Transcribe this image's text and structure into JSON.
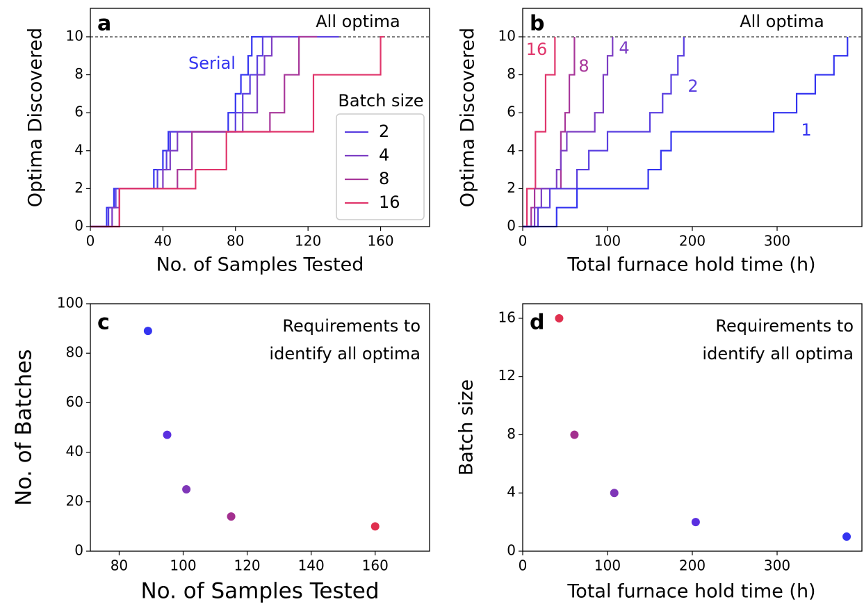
{
  "chart_data": [
    {
      "type": "step",
      "panel_label": "a",
      "x_label": "No. of Samples Tested",
      "y_label": "Optima Discovered",
      "xlim": [
        0,
        187
      ],
      "xticks": [
        0,
        40,
        80,
        120,
        160
      ],
      "ylim": [
        0,
        11.5
      ],
      "yticks": [
        0,
        2,
        4,
        6,
        8,
        10
      ],
      "threshold": {
        "value": 10,
        "label": "All optima"
      },
      "legend": {
        "title": "Batch size",
        "loc": "center right"
      },
      "series": [
        {
          "name": "Serial",
          "legend_entry": false,
          "color": "#3434f0",
          "x": [
            0,
            9,
            13,
            35,
            40,
            43,
            76,
            80,
            83,
            87,
            89,
            100
          ],
          "values": [
            0,
            1,
            2,
            3,
            4,
            5,
            6,
            7,
            8,
            9,
            10,
            10
          ]
        },
        {
          "name": "2",
          "color": "#5a3fe0",
          "x": [
            0,
            10,
            14,
            37,
            42,
            44,
            80,
            84,
            88,
            92,
            95,
            137
          ],
          "values": [
            0,
            1,
            2,
            3,
            4,
            5,
            6,
            7,
            8,
            9,
            10,
            10
          ]
        },
        {
          "name": "4",
          "color": "#7d3ec4",
          "x": [
            0,
            12,
            16,
            40,
            44,
            48,
            84,
            92,
            96,
            100,
            110
          ],
          "values": [
            0,
            1,
            2,
            3,
            4,
            5,
            6,
            8,
            9,
            10,
            10
          ]
        },
        {
          "name": "8",
          "color": "#a8379a",
          "x": [
            0,
            16,
            48,
            56,
            99,
            107,
            115,
            125
          ],
          "values": [
            0,
            2,
            3,
            5,
            6,
            8,
            10,
            10
          ]
        },
        {
          "name": "16",
          "color": "#e0356b",
          "x": [
            0,
            16,
            58,
            75,
            123,
            160,
            162
          ],
          "values": [
            0,
            2,
            3,
            5,
            8,
            10,
            10
          ]
        }
      ]
    },
    {
      "type": "step",
      "panel_label": "b",
      "x_label": "Total furnace hold time (h)",
      "y_label": "Optima Discovered",
      "xlim": [
        0,
        400
      ],
      "xticks": [
        0,
        100,
        200,
        300
      ],
      "ylim": [
        0,
        11.5
      ],
      "yticks": [
        0,
        2,
        4,
        6,
        8,
        10
      ],
      "threshold": {
        "value": 10,
        "label": "All optima"
      },
      "legend": "inline",
      "series": [
        {
          "name": "16",
          "color": "#e0356b",
          "x": [
            0,
            5,
            15,
            27,
            38
          ],
          "values": [
            0,
            2,
            5,
            8,
            10
          ]
        },
        {
          "name": "8",
          "color": "#a8379a",
          "x": [
            0,
            10,
            14,
            45,
            50,
            55,
            61
          ],
          "values": [
            0,
            1,
            2,
            5,
            6,
            8,
            10
          ]
        },
        {
          "name": "4",
          "color": "#7d3ec4",
          "x": [
            0,
            14,
            22,
            40,
            45,
            52,
            85,
            95,
            100,
            106
          ],
          "values": [
            0,
            1,
            2,
            3,
            4,
            5,
            6,
            8,
            9,
            10
          ]
        },
        {
          "name": "2",
          "color": "#5a3fe0",
          "x": [
            0,
            18,
            32,
            64,
            78,
            100,
            150,
            165,
            175,
            183,
            190
          ],
          "values": [
            0,
            1,
            2,
            3,
            4,
            5,
            6,
            7,
            8,
            9,
            10
          ]
        },
        {
          "name": "1",
          "color": "#3434f0",
          "x": [
            0,
            40,
            64,
            148,
            163,
            175,
            296,
            323,
            345,
            367,
            383
          ],
          "values": [
            0,
            1,
            2,
            3,
            4,
            5,
            6,
            7,
            8,
            9,
            10
          ]
        }
      ]
    },
    {
      "type": "scatter",
      "panel_label": "c",
      "x_label": "No. of Samples Tested",
      "y_label": "No. of Batches",
      "annotation": [
        "Requirements to",
        "identify all optima"
      ],
      "xlim": [
        71,
        177
      ],
      "xticks": [
        80,
        100,
        120,
        140,
        160
      ],
      "ylim": [
        0,
        100
      ],
      "yticks": [
        0,
        20,
        40,
        60,
        80,
        100
      ],
      "x": [
        89,
        95,
        101,
        115,
        160
      ],
      "values": [
        89,
        47,
        25,
        14,
        10
      ],
      "colors": [
        "#3434f0",
        "#5a2fe0",
        "#7f36b8",
        "#a3308f",
        "#e0304f"
      ]
    },
    {
      "type": "scatter",
      "panel_label": "d",
      "x_label": "Total furnace hold time (h)",
      "y_label": "Batch size",
      "annotation": [
        "Requirements to",
        "identify all optima"
      ],
      "xlim": [
        0,
        400
      ],
      "xticks": [
        0,
        100,
        200,
        300
      ],
      "ylim": [
        0,
        17
      ],
      "yticks": [
        0,
        4,
        8,
        12,
        16
      ],
      "x": [
        382,
        204,
        108,
        61,
        43
      ],
      "values": [
        1,
        2,
        4,
        8,
        16
      ],
      "colors": [
        "#3434f0",
        "#5a2fe0",
        "#7f36b8",
        "#a3308f",
        "#e0304f"
      ]
    }
  ]
}
